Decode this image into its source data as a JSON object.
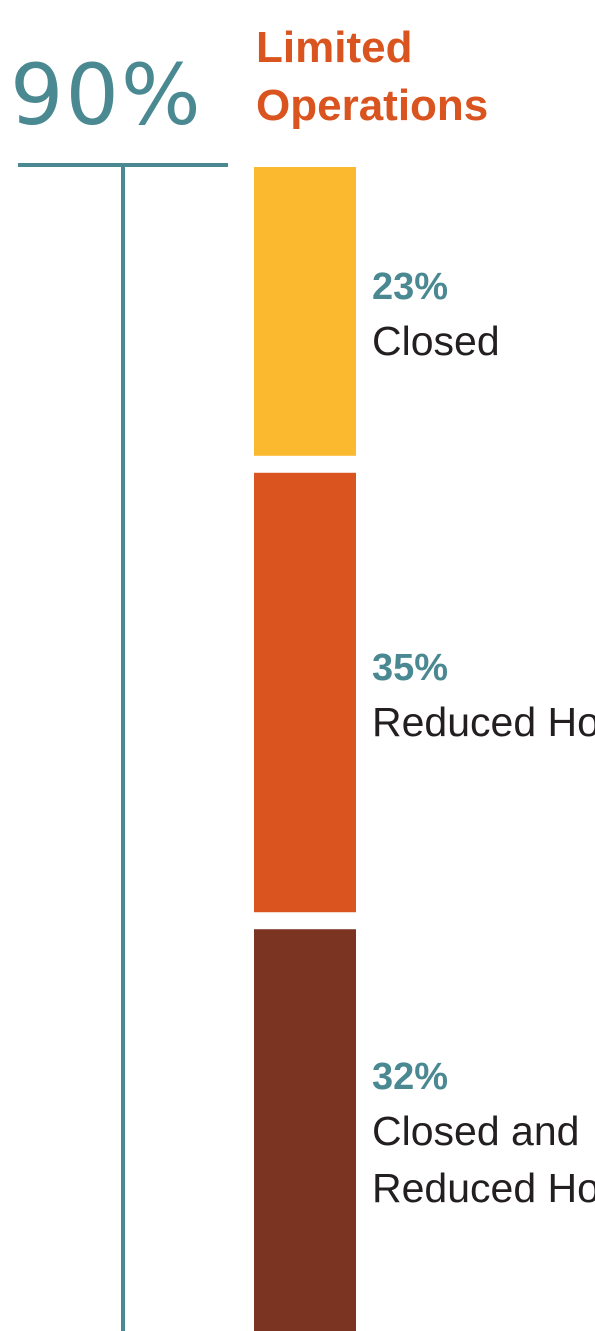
{
  "chart_data": {
    "type": "bar",
    "stacked": true,
    "orientation": "vertical",
    "title": "Limited Operations",
    "total_label": "90%",
    "total_value": 90,
    "unit": "%",
    "segments": [
      {
        "label": "Closed",
        "value": 23,
        "value_label": "23%",
        "color": "#FBB92F"
      },
      {
        "label": "Reduced Hours",
        "value": 35,
        "value_label": "35%",
        "color": "#D9541E"
      },
      {
        "label": "Closed and Reduced Hours",
        "value": 32,
        "value_label": "32%",
        "color": "#7A3421"
      }
    ]
  },
  "colors": {
    "accent_teal": "#4A8992",
    "title_orange": "#D9541E",
    "label_dark": "#231F20"
  }
}
